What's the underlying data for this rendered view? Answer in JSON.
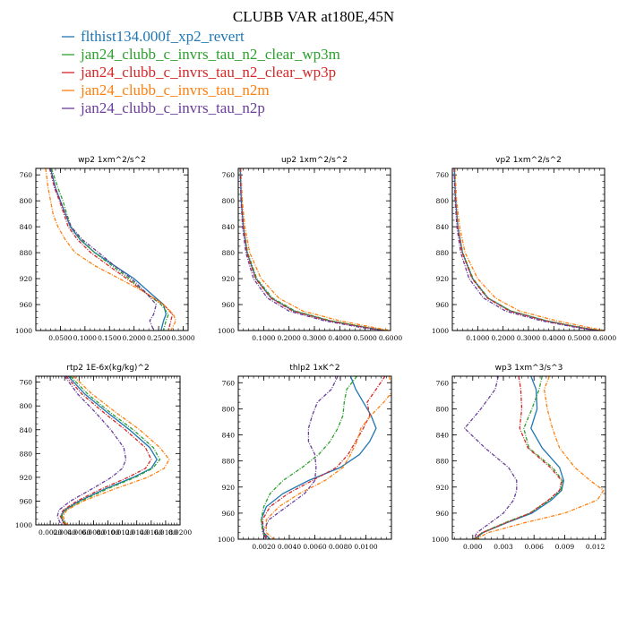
{
  "figure": {
    "title": "CLUBB VAR at180E,45N"
  },
  "legend": [
    {
      "label": "flthist134.000f_xp2_revert",
      "color": "#1f77b4",
      "dash": "solid"
    },
    {
      "label": "jan24_clubb_c_invrs_tau_n2_clear_wp3m",
      "color": "#2ca02c",
      "dash": "dashdot"
    },
    {
      "label": "jan24_clubb_c_invrs_tau_n2_clear_wp3p",
      "color": "#d62728",
      "dash": "dashdot"
    },
    {
      "label": "jan24_clubb_c_invrs_tau_n2m",
      "color": "#ff7f0e",
      "dash": "dashdot"
    },
    {
      "label": "jan24_clubb_c_invrs_tau_n2p",
      "color": "#6a3d9a",
      "dash": "dashdot"
    }
  ],
  "chart_data": [
    {
      "type": "line",
      "title": "wp2   1xm^2/s^2",
      "xlim": [
        0,
        0.31
      ],
      "ylim": [
        1000,
        750
      ],
      "xticks": [
        0.05,
        0.1,
        0.15,
        0.2,
        0.25,
        0.3
      ],
      "xticklabels": [
        "0.0500",
        "0.1000",
        "0.1500",
        "0.2000",
        "0.2500",
        "0.3000"
      ],
      "yticks": [
        760,
        800,
        840,
        880,
        920,
        960,
        1000
      ],
      "y": [
        750,
        780,
        800,
        820,
        840,
        860,
        880,
        900,
        920,
        940,
        960,
        975,
        985,
        1000
      ],
      "series": [
        {
          "values": [
            0.03,
            0.04,
            0.05,
            0.06,
            0.07,
            0.09,
            0.12,
            0.16,
            0.2,
            0.23,
            0.26,
            0.265,
            0.26,
            0.255
          ]
        },
        {
          "values": [
            0.032,
            0.045,
            0.055,
            0.063,
            0.072,
            0.092,
            0.12,
            0.155,
            0.19,
            0.22,
            0.255,
            0.27,
            0.265,
            0.26
          ]
        },
        {
          "values": [
            0.028,
            0.038,
            0.048,
            0.057,
            0.066,
            0.085,
            0.112,
            0.148,
            0.185,
            0.22,
            0.26,
            0.278,
            0.275,
            0.27
          ]
        },
        {
          "values": [
            0.02,
            0.025,
            0.03,
            0.035,
            0.045,
            0.06,
            0.08,
            0.12,
            0.17,
            0.22,
            0.26,
            0.28,
            0.285,
            0.275
          ]
        },
        {
          "values": [
            0.029,
            0.04,
            0.05,
            0.06,
            0.072,
            0.095,
            0.128,
            0.16,
            0.195,
            0.222,
            0.245,
            0.24,
            0.232,
            0.24
          ]
        }
      ]
    },
    {
      "type": "line",
      "title": "up2   1xm^2/s^2",
      "xlim": [
        0,
        0.6
      ],
      "ylim": [
        1000,
        750
      ],
      "xticks": [
        0.1,
        0.2,
        0.3,
        0.4,
        0.5,
        0.6
      ],
      "xticklabels": [
        "0.1000",
        "0.2000",
        "0.3000",
        "0.4000",
        "0.5000",
        "0.6000"
      ],
      "yticks": [
        760,
        800,
        840,
        880,
        920,
        960,
        1000
      ],
      "y": [
        750,
        800,
        840,
        880,
        920,
        950,
        970,
        985,
        995,
        1000
      ],
      "series": [
        {
          "values": [
            0.008,
            0.012,
            0.02,
            0.035,
            0.07,
            0.13,
            0.22,
            0.36,
            0.5,
            0.58
          ]
        },
        {
          "values": [
            0.008,
            0.013,
            0.021,
            0.037,
            0.073,
            0.135,
            0.225,
            0.365,
            0.5,
            0.58
          ]
        },
        {
          "values": [
            0.008,
            0.012,
            0.02,
            0.034,
            0.068,
            0.128,
            0.215,
            0.355,
            0.495,
            0.575
          ]
        },
        {
          "values": [
            0.01,
            0.016,
            0.026,
            0.045,
            0.09,
            0.16,
            0.255,
            0.4,
            0.53,
            0.6
          ]
        },
        {
          "values": [
            0.007,
            0.011,
            0.017,
            0.03,
            0.06,
            0.115,
            0.2,
            0.34,
            0.48,
            0.57
          ]
        }
      ]
    },
    {
      "type": "line",
      "title": "vp2   1xm^2/s^2",
      "xlim": [
        0,
        0.6
      ],
      "ylim": [
        1000,
        750
      ],
      "xticks": [
        0.1,
        0.2,
        0.3,
        0.4,
        0.5,
        0.6
      ],
      "xticklabels": [
        "0.1000",
        "0.2000",
        "0.3000",
        "0.4000",
        "0.5000",
        "0.6000"
      ],
      "yticks": [
        760,
        800,
        840,
        880,
        920,
        960,
        1000
      ],
      "y": [
        750,
        800,
        840,
        880,
        920,
        950,
        970,
        985,
        995,
        1000
      ],
      "series": [
        {
          "values": [
            0.008,
            0.013,
            0.022,
            0.04,
            0.08,
            0.14,
            0.23,
            0.37,
            0.5,
            0.58
          ]
        },
        {
          "values": [
            0.008,
            0.013,
            0.022,
            0.041,
            0.082,
            0.142,
            0.232,
            0.372,
            0.5,
            0.58
          ]
        },
        {
          "values": [
            0.008,
            0.012,
            0.021,
            0.039,
            0.078,
            0.138,
            0.225,
            0.365,
            0.495,
            0.575
          ]
        },
        {
          "values": [
            0.01,
            0.017,
            0.029,
            0.05,
            0.1,
            0.17,
            0.265,
            0.41,
            0.535,
            0.6
          ]
        },
        {
          "values": [
            0.007,
            0.011,
            0.018,
            0.033,
            0.066,
            0.123,
            0.21,
            0.35,
            0.485,
            0.57
          ]
        }
      ]
    },
    {
      "type": "line",
      "title": "rtp2   1E-6x(kg/kg)^2",
      "xlim": [
        0,
        0.02
      ],
      "ylim": [
        1000,
        750
      ],
      "xticks": [
        0.002,
        0.004,
        0.006,
        0.008,
        0.01,
        0.012,
        0.014,
        0.016,
        0.018,
        0.02
      ],
      "xticklabels": [
        "0.0020",
        "0.0040",
        "0.0060",
        "0.0080",
        "0.0100",
        "0.0120",
        "0.0140",
        "0.0160",
        "0.0180",
        "0.0200"
      ],
      "yticks": [
        760,
        800,
        840,
        880,
        920,
        960,
        1000
      ],
      "y": [
        750,
        780,
        810,
        840,
        870,
        890,
        905,
        920,
        940,
        960,
        975,
        985,
        995,
        1000
      ],
      "series": [
        {
          "values": [
            0.0045,
            0.0068,
            0.0098,
            0.013,
            0.0158,
            0.0168,
            0.016,
            0.0135,
            0.0095,
            0.006,
            0.004,
            0.0035,
            0.0038,
            0.0042
          ]
        },
        {
          "values": [
            0.0048,
            0.0072,
            0.0102,
            0.0135,
            0.0163,
            0.0172,
            0.0162,
            0.0138,
            0.0098,
            0.0063,
            0.0042,
            0.0036,
            0.0039,
            0.0043
          ]
        },
        {
          "values": [
            0.0042,
            0.0064,
            0.0093,
            0.0124,
            0.0152,
            0.016,
            0.0152,
            0.0128,
            0.009,
            0.0057,
            0.0038,
            0.0034,
            0.0037,
            0.0041
          ]
        },
        {
          "values": [
            0.0052,
            0.0078,
            0.011,
            0.0144,
            0.0172,
            0.0185,
            0.0178,
            0.0155,
            0.0108,
            0.0066,
            0.0043,
            0.0038,
            0.004,
            0.0045
          ]
        },
        {
          "values": [
            0.004,
            0.0058,
            0.0082,
            0.0104,
            0.0122,
            0.0125,
            0.012,
            0.0105,
            0.0077,
            0.0048,
            0.0032,
            0.003,
            0.0033,
            0.0036
          ]
        }
      ]
    },
    {
      "type": "line",
      "title": "thlp2   1xK^2",
      "xlim": [
        0,
        0.012
      ],
      "ylim": [
        1000,
        750
      ],
      "xticks": [
        0.002,
        0.004,
        0.006,
        0.008,
        0.01
      ],
      "xticklabels": [
        "0.0020",
        "0.0040",
        "0.0060",
        "0.0080",
        "0.0100"
      ],
      "yticks": [
        760,
        800,
        840,
        880,
        920,
        960,
        1000
      ],
      "y": [
        750,
        770,
        790,
        810,
        830,
        850,
        870,
        890,
        910,
        930,
        950,
        970,
        990,
        1000
      ],
      "series": [
        {
          "values": [
            0.0088,
            0.0092,
            0.0098,
            0.0104,
            0.0108,
            0.0103,
            0.0095,
            0.008,
            0.0055,
            0.0035,
            0.0022,
            0.0018,
            0.002,
            0.0025
          ]
        },
        {
          "values": [
            0.0093,
            0.0085,
            0.0083,
            0.0082,
            0.0078,
            0.0072,
            0.0063,
            0.005,
            0.0035,
            0.0025,
            0.002,
            0.0018,
            0.0019,
            0.0024
          ]
        },
        {
          "values": [
            0.0115,
            0.0108,
            0.0101,
            0.0103,
            0.0098,
            0.0092,
            0.0086,
            0.0077,
            0.0058,
            0.0039,
            0.0025,
            0.0019,
            0.002,
            0.0023
          ]
        },
        {
          "values": [
            0.0118,
            0.0122,
            0.0114,
            0.0104,
            0.0096,
            0.0093,
            0.0088,
            0.0082,
            0.0068,
            0.0048,
            0.0032,
            0.0022,
            0.0022,
            0.0028
          ]
        },
        {
          "values": [
            0.0078,
            0.0073,
            0.0062,
            0.0058,
            0.0055,
            0.0055,
            0.006,
            0.0061,
            0.006,
            0.0052,
            0.0038,
            0.0024,
            0.0019,
            0.0022
          ]
        }
      ]
    },
    {
      "type": "line",
      "title": "wp3   1xm^3/s^3",
      "xlim": [
        -0.002,
        0.013
      ],
      "ylim": [
        1000,
        750
      ],
      "xticks": [
        0,
        0.003,
        0.006,
        0.009,
        0.012
      ],
      "xticklabels": [
        "0.000",
        "0.003",
        "0.006",
        "0.009",
        "0.012"
      ],
      "yticks": [
        760,
        800,
        840,
        880,
        920,
        960,
        1000
      ],
      "y": [
        750,
        770,
        800,
        830,
        860,
        890,
        910,
        925,
        940,
        960,
        975,
        990,
        1000
      ],
      "series": [
        {
          "values": [
            0.0057,
            0.0062,
            0.0063,
            0.0057,
            0.0068,
            0.0085,
            0.0089,
            0.0087,
            0.0077,
            0.0058,
            0.0033,
            0.001,
            0.0002
          ]
        },
        {
          "values": [
            0.0068,
            0.0065,
            0.0058,
            0.005,
            0.0055,
            0.0078,
            0.0088,
            0.0086,
            0.0075,
            0.0056,
            0.0031,
            0.0009,
            0.0001
          ]
        },
        {
          "values": [
            0.0045,
            0.0047,
            0.0048,
            0.0046,
            0.0054,
            0.0076,
            0.0087,
            0.0085,
            0.0074,
            0.0056,
            0.0032,
            0.0009,
            0.0001
          ]
        },
        {
          "values": [
            0.0075,
            0.007,
            0.0073,
            0.0078,
            0.0085,
            0.01,
            0.0115,
            0.0128,
            0.0122,
            0.009,
            0.005,
            0.0015,
            0.0003
          ]
        },
        {
          "values": [
            0.0025,
            0.0022,
            0.0008,
            -0.0008,
            0.0012,
            0.0035,
            0.0043,
            0.0043,
            0.004,
            0.003,
            0.0017,
            0.0004,
            0.0001
          ]
        }
      ]
    }
  ]
}
